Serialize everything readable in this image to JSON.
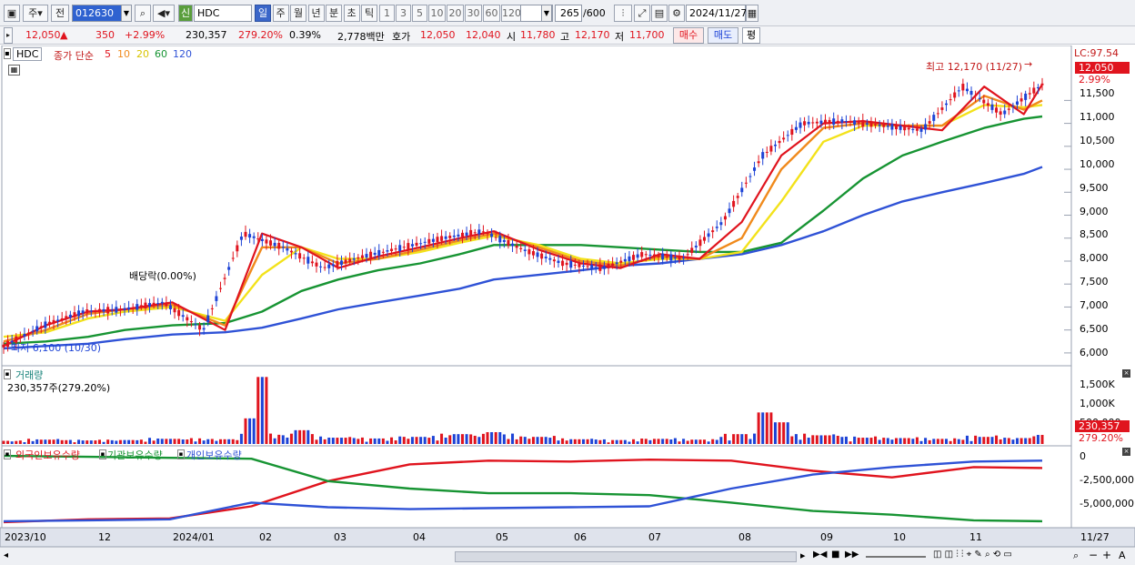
{
  "toolbar": {
    "type_label": "주",
    "prev_label": "전",
    "code": "012630",
    "sin_label": "신",
    "name": "HDC",
    "periods": [
      "일",
      "주",
      "월",
      "년",
      "분",
      "초",
      "틱"
    ],
    "multipliers": [
      "1",
      "3",
      "5",
      "10",
      "20",
      "30",
      "60",
      "120"
    ],
    "count": "265",
    "count_total": "/600",
    "date": "2024/11/27"
  },
  "quote": {
    "price": "12,050",
    "arrow": "▲",
    "change": "350",
    "change_pct": "+2.99%",
    "volume": "230,357",
    "volume_ratio": "279.20%",
    "turnover_pct": "0.39%",
    "amount": "2,778백만",
    "ask_label": "호가",
    "ask": "12,050",
    "bid": "12,040",
    "open_label": "시",
    "open": "11,780",
    "high_label": "고",
    "high": "12,170",
    "low_label": "저",
    "low": "11,700",
    "buy_label": "매수",
    "sell_label": "매도",
    "eval_label": "평"
  },
  "colors": {
    "up": "#e0141e",
    "down": "#1d43d6",
    "ma5": "#e0141e",
    "ma10": "#f08a1c",
    "ma20": "#f3e21b",
    "ma60": "#179433",
    "ma120": "#2f52d6"
  },
  "price_panel": {
    "name_tag": "HDC",
    "legend_title": "종가 단순",
    "ma_labels": [
      "5",
      "10",
      "20",
      "60",
      "120"
    ],
    "y_ticks": [
      "11,500",
      "11,000",
      "10,500",
      "10,000",
      "9,500",
      "9,000",
      "8,500",
      "8,000",
      "7,500",
      "7,000",
      "6,500",
      "6,000"
    ],
    "lc_label": "LC:97.54",
    "current_tag": "12,050",
    "current_pct": "2.99%",
    "high_annotation": "최고 12,170 (11/27)",
    "low_annotation": "최저 6,100 (10/30)",
    "dividend_annotation": "배당락(0.00%)"
  },
  "volume_panel": {
    "title": "거래량",
    "value_label": "230,357주(279.20%)",
    "y_ticks": [
      "1,500K",
      "1,000K",
      "500,000"
    ],
    "current_tag": "230,357",
    "current_pct": "279.20%"
  },
  "holdings_panel": {
    "legend": [
      "외국인보유수량",
      "기관보유수량",
      "개인보유수량"
    ],
    "y_ticks": [
      "0",
      "-2,500,000",
      "-5,000,000"
    ]
  },
  "x_axis": {
    "labels": [
      "2023/10",
      "12",
      "2024/01",
      "02",
      "03",
      "04",
      "05",
      "06",
      "07",
      "08",
      "09",
      "10",
      "11",
      "11/27"
    ]
  },
  "chart_data": [
    {
      "type": "line",
      "title": "",
      "ylim": [
        5800,
        12300
      ],
      "x": [
        "2023/10/30",
        "2023/11/15",
        "2023/12/01",
        "2023/12/15",
        "2024/01/02",
        "2024/01/22",
        "2024/02/05",
        "2024/02/20",
        "2024/03/05",
        "2024/03/20",
        "2024/04/05",
        "2024/04/20",
        "2024/05/03",
        "2024/05/20",
        "2024/06/05",
        "2024/06/20",
        "2024/07/05",
        "2024/07/20",
        "2024/08/05",
        "2024/08/20",
        "2024/09/05",
        "2024/09/20",
        "2024/10/05",
        "2024/10/20",
        "2024/11/05",
        "2024/11/20",
        "2024/11/27"
      ],
      "series": [
        {
          "name": "5",
          "values": [
            6150,
            6600,
            6900,
            6950,
            7100,
            6500,
            8600,
            8300,
            7850,
            8100,
            8300,
            8500,
            8650,
            8250,
            7950,
            7850,
            8150,
            8050,
            8850,
            10300,
            11000,
            11050,
            10950,
            10850,
            11800,
            11200,
            11850
          ]
        },
        {
          "name": "10",
          "values": [
            6250,
            6500,
            6850,
            6950,
            7050,
            6600,
            8300,
            8300,
            7950,
            8050,
            8250,
            8450,
            8600,
            8300,
            8000,
            7900,
            8100,
            8050,
            8500,
            10000,
            10900,
            11000,
            10950,
            10950,
            11600,
            11300,
            11500
          ]
        },
        {
          "name": "20",
          "values": [
            6350,
            6450,
            6750,
            6900,
            7000,
            6700,
            7700,
            8300,
            8050,
            8050,
            8200,
            8400,
            8550,
            8350,
            8050,
            7950,
            8050,
            8050,
            8200,
            9300,
            10600,
            10950,
            10950,
            10950,
            11400,
            11350,
            11400
          ]
        },
        {
          "name": "60",
          "values": [
            6200,
            6250,
            6350,
            6500,
            6600,
            6650,
            6900,
            7350,
            7600,
            7800,
            7950,
            8150,
            8350,
            8350,
            8350,
            8300,
            8250,
            8200,
            8200,
            8400,
            9100,
            9800,
            10300,
            10600,
            10900,
            11100,
            11150
          ]
        },
        {
          "name": "120",
          "values": [
            6100,
            6150,
            6200,
            6300,
            6400,
            6450,
            6550,
            6750,
            6950,
            7100,
            7250,
            7400,
            7600,
            7700,
            7800,
            7900,
            7950,
            8050,
            8150,
            8350,
            8650,
            9000,
            9300,
            9500,
            9700,
            9900,
            10050
          ]
        }
      ]
    },
    {
      "type": "bar",
      "title": "",
      "ylim": [
        0,
        1800000
      ],
      "x": [
        "2023/10/30",
        "2023/11/15",
        "2023/12/01",
        "2023/12/15",
        "2024/01/02",
        "2024/01/22",
        "2024/02/01",
        "2024/02/05",
        "2024/02/20",
        "2024/03/05",
        "2024/03/20",
        "2024/04/05",
        "2024/04/20",
        "2024/05/03",
        "2024/05/20",
        "2024/06/05",
        "2024/06/20",
        "2024/07/05",
        "2024/07/20",
        "2024/08/05",
        "2024/08/13",
        "2024/08/20",
        "2024/09/05",
        "2024/09/20",
        "2024/10/05",
        "2024/10/20",
        "2024/11/05",
        "2024/11/20",
        "2024/11/27"
      ],
      "values": [
        80000,
        110000,
        90000,
        100000,
        130000,
        120000,
        650000,
        1700000,
        350000,
        160000,
        140000,
        180000,
        250000,
        300000,
        180000,
        120000,
        100000,
        130000,
        110000,
        250000,
        800000,
        550000,
        220000,
        160000,
        150000,
        130000,
        180000,
        150000,
        230357
      ]
    },
    {
      "type": "line",
      "title": "",
      "ylim": [
        -7500000,
        500000
      ],
      "x": [
        "2023/10",
        "2023/12",
        "2024/01",
        "2024/02",
        "2024/03",
        "2024/04",
        "2024/05",
        "2024/06",
        "2024/07",
        "2024/08",
        "2024/09",
        "2024/10",
        "2024/11",
        "2024/11/27"
      ],
      "series": [
        {
          "name": "외국인보유수량",
          "values": [
            -7100000,
            -6800000,
            -6700000,
            -5400000,
            -2700000,
            -900000,
            -500000,
            -600000,
            -400000,
            -500000,
            -1600000,
            -2300000,
            -1200000,
            -1300000
          ]
        },
        {
          "name": "기관보유수량",
          "values": [
            0,
            -100000,
            -200000,
            -300000,
            -2700000,
            -3500000,
            -4000000,
            -4000000,
            -4200000,
            -5000000,
            -5900000,
            -6300000,
            -6900000,
            -7000000
          ]
        },
        {
          "name": "개인보유수량",
          "values": [
            -7000000,
            -6900000,
            -6800000,
            -5000000,
            -5500000,
            -5700000,
            -5600000,
            -5500000,
            -5400000,
            -3500000,
            -2000000,
            -1200000,
            -600000,
            -500000
          ]
        }
      ]
    }
  ]
}
